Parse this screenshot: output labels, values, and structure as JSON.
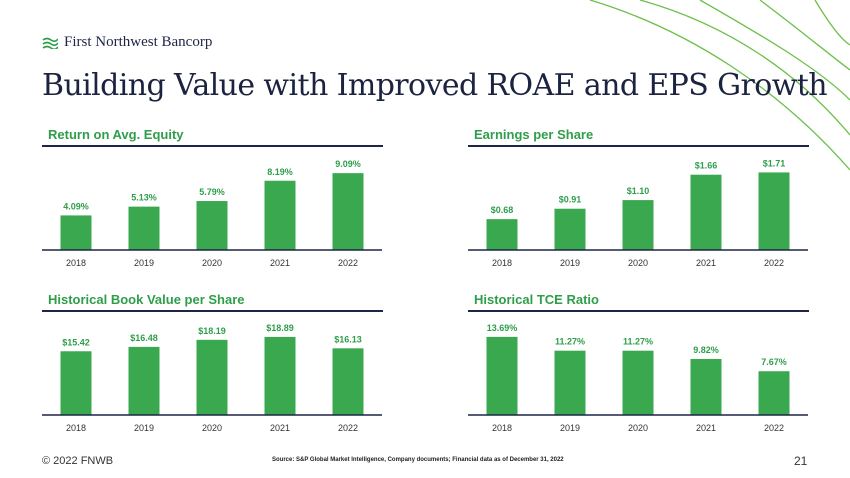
{
  "brand": {
    "name": "First Northwest Bancorp",
    "logo_icon": "wave-lines-icon"
  },
  "title": "Building Value with Improved ROAE and EPS Growth",
  "footer": {
    "copyright": "© 2022 FNWB",
    "source": "Source: S&P Global Market Intelligence, Company documents; Financial data as of December 31, 2022",
    "page": "21"
  },
  "colors": {
    "bar": "#3aa84e",
    "label": "#2e9e4a",
    "navy": "#1e2547",
    "accent_green": "#6cc04a"
  },
  "chart_data": [
    {
      "type": "bar",
      "title": "Return on Avg. Equity",
      "categories": [
        "2018",
        "2019",
        "2020",
        "2021",
        "2022"
      ],
      "values": [
        4.09,
        5.13,
        5.79,
        8.19,
        9.09
      ],
      "labels": [
        "4.09%",
        "5.13%",
        "5.79%",
        "8.19%",
        "9.09%"
      ],
      "ylim": [
        0,
        11
      ],
      "grid": false
    },
    {
      "type": "bar",
      "title": "Earnings per Share",
      "categories": [
        "2018",
        "2019",
        "2020",
        "2021",
        "2022"
      ],
      "values": [
        0.68,
        0.91,
        1.1,
        1.66,
        1.71
      ],
      "labels": [
        "$0.68",
        "$0.91",
        "$1.10",
        "$1.66",
        "$1.71"
      ],
      "ylim": [
        0,
        2.05
      ],
      "grid": false
    },
    {
      "type": "bar",
      "title": "Historical Book Value per Share",
      "categories": [
        "2018",
        "2019",
        "2020",
        "2021",
        "2022"
      ],
      "values": [
        15.42,
        16.48,
        18.19,
        18.89,
        16.13
      ],
      "labels": [
        "$15.42",
        "$16.48",
        "$18.19",
        "$18.89",
        "$16.13"
      ],
      "ylim": [
        0,
        22.5
      ],
      "grid": false
    },
    {
      "type": "bar",
      "title": "Historical TCE Ratio",
      "categories": [
        "2018",
        "2019",
        "2020",
        "2021",
        "2022"
      ],
      "values": [
        13.69,
        11.27,
        11.27,
        9.82,
        7.67
      ],
      "labels": [
        "13.69%",
        "11.27%",
        "11.27%",
        "9.82%",
        "7.67%"
      ],
      "ylim": [
        0,
        16.3
      ],
      "grid": false
    }
  ]
}
